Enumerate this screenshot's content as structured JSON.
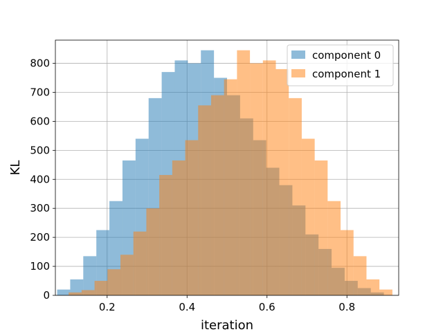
{
  "chart_data": {
    "type": "bar",
    "subtype": "overlapping-histogram",
    "xlabel": "iteration",
    "ylabel": "KL",
    "xlim": [
      0.0705,
      0.9295
    ],
    "ylim": [
      0,
      880
    ],
    "xticks": [
      0.2,
      0.4,
      0.6,
      0.8
    ],
    "xtick_labels": [
      "0.2",
      "0.4",
      "0.6",
      "0.8"
    ],
    "yticks": [
      0,
      100,
      200,
      300,
      400,
      500,
      600,
      700,
      800
    ],
    "ytick_labels": [
      "0",
      "100",
      "200",
      "300",
      "400",
      "500",
      "600",
      "700",
      "800"
    ],
    "grid": true,
    "legend_position": "top-right",
    "series": [
      {
        "name": "component 0",
        "color": "#1f77b4",
        "alpha": 0.5,
        "bin_edges": [
          0.0749,
          0.1076,
          0.1403,
          0.173,
          0.2057,
          0.2384,
          0.2711,
          0.3038,
          0.3365,
          0.3692,
          0.4019,
          0.4346,
          0.4673,
          0.5,
          0.5327,
          0.5654,
          0.5981,
          0.6308,
          0.6635,
          0.6962,
          0.7289,
          0.7616,
          0.7943,
          0.827,
          0.8597,
          0.8924
        ],
        "values": [
          20,
          55,
          135,
          225,
          325,
          465,
          540,
          680,
          770,
          810,
          800,
          845,
          750,
          690,
          610,
          535,
          440,
          380,
          310,
          210,
          160,
          95,
          50,
          25,
          10
        ]
      },
      {
        "name": "component 1",
        "color": "#ff7f0e",
        "alpha": 0.5,
        "bin_edges": [
          0.1037,
          0.1361,
          0.1685,
          0.2009,
          0.2333,
          0.2657,
          0.2981,
          0.3305,
          0.3629,
          0.3953,
          0.4277,
          0.4601,
          0.4925,
          0.5249,
          0.5573,
          0.5897,
          0.6221,
          0.6545,
          0.6869,
          0.7193,
          0.7517,
          0.7841,
          0.8165,
          0.8489,
          0.8813,
          0.9137
        ],
        "values": [
          10,
          18,
          50,
          90,
          140,
          220,
          300,
          415,
          465,
          535,
          655,
          690,
          745,
          845,
          800,
          810,
          780,
          680,
          540,
          465,
          325,
          225,
          135,
          55,
          20
        ]
      }
    ]
  }
}
